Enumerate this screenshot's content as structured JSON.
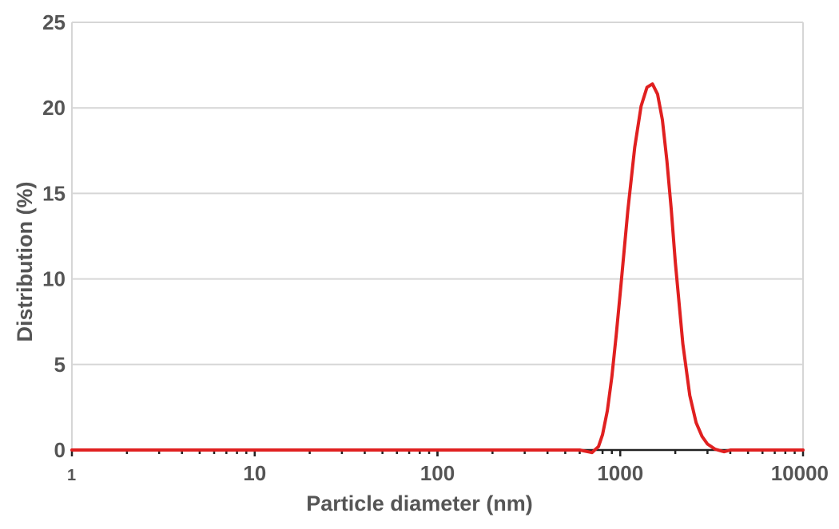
{
  "chart_data": {
    "type": "line",
    "title": "",
    "xlabel": "Particle diameter (nm)",
    "ylabel": "Distribution (%)",
    "x_scale": "log",
    "xlim": [
      1,
      10000
    ],
    "ylim": [
      0,
      25
    ],
    "x_ticks": [
      1,
      10,
      100,
      1000,
      10000
    ],
    "x_tick_labels": [
      "1",
      "10",
      "100",
      "1000",
      "10000"
    ],
    "y_ticks": [
      0,
      5,
      10,
      15,
      20,
      25
    ],
    "y_tick_labels": [
      "0",
      "5",
      "10",
      "15",
      "20",
      "25"
    ],
    "grid": "horizontal",
    "legend": "none",
    "series": [
      {
        "color": "#e02020",
        "x": [
          1,
          600,
          700,
          760,
          800,
          850,
          900,
          950,
          1000,
          1100,
          1200,
          1300,
          1400,
          1500,
          1600,
          1700,
          1800,
          1900,
          2000,
          2200,
          2400,
          2600,
          2800,
          3000,
          3300,
          3700,
          4000,
          10000
        ],
        "y": [
          0,
          0,
          -0.15,
          0.2,
          0.9,
          2.3,
          4.3,
          6.7,
          9.2,
          14.0,
          17.7,
          20.1,
          21.2,
          21.4,
          20.8,
          19.3,
          16.9,
          14.1,
          11.0,
          6.2,
          3.2,
          1.6,
          0.8,
          0.35,
          0.05,
          -0.1,
          0,
          0
        ]
      }
    ]
  }
}
